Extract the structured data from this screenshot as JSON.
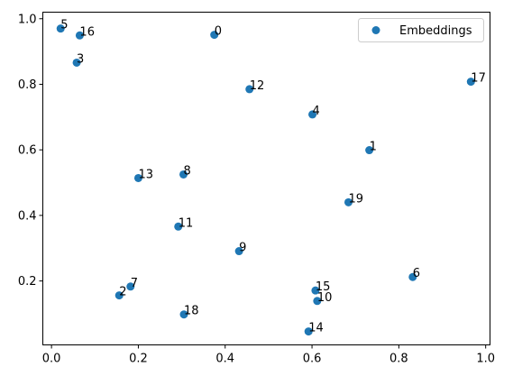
{
  "chart_data": {
    "type": "scatter",
    "title": "",
    "xlabel": "",
    "ylabel": "",
    "xlim": [
      -0.02,
      1.01
    ],
    "ylim": [
      0.005,
      1.02
    ],
    "xticks": [
      0.0,
      0.2,
      0.4,
      0.6,
      0.8,
      1.0
    ],
    "yticks": [
      0.2,
      0.4,
      0.6,
      0.8,
      1.0
    ],
    "xtick_labels": [
      "0.0",
      "0.2",
      "0.4",
      "0.6",
      "0.8",
      "1.0"
    ],
    "ytick_labels": [
      "0.2",
      "0.4",
      "0.6",
      "0.8",
      "1.0"
    ],
    "grid": false,
    "legend_position": "top-right",
    "series": [
      {
        "name": "Embeddings",
        "color": "#1f77b4",
        "points": [
          {
            "label": "0",
            "x": 0.375,
            "y": 0.951
          },
          {
            "label": "1",
            "x": 0.732,
            "y": 0.599
          },
          {
            "label": "2",
            "x": 0.156,
            "y": 0.156
          },
          {
            "label": "3",
            "x": 0.058,
            "y": 0.866
          },
          {
            "label": "4",
            "x": 0.601,
            "y": 0.708
          },
          {
            "label": "5",
            "x": 0.021,
            "y": 0.97
          },
          {
            "label": "6",
            "x": 0.832,
            "y": 0.212
          },
          {
            "label": "7",
            "x": 0.182,
            "y": 0.183
          },
          {
            "label": "8",
            "x": 0.304,
            "y": 0.525
          },
          {
            "label": "9",
            "x": 0.432,
            "y": 0.291
          },
          {
            "label": "10",
            "x": 0.612,
            "y": 0.139
          },
          {
            "label": "11",
            "x": 0.292,
            "y": 0.366
          },
          {
            "label": "12",
            "x": 0.456,
            "y": 0.785
          },
          {
            "label": "13",
            "x": 0.2,
            "y": 0.514
          },
          {
            "label": "14",
            "x": 0.592,
            "y": 0.046
          },
          {
            "label": "15",
            "x": 0.608,
            "y": 0.171
          },
          {
            "label": "16",
            "x": 0.065,
            "y": 0.949
          },
          {
            "label": "17",
            "x": 0.966,
            "y": 0.808
          },
          {
            "label": "18",
            "x": 0.305,
            "y": 0.098
          },
          {
            "label": "19",
            "x": 0.684,
            "y": 0.44
          }
        ]
      }
    ]
  }
}
